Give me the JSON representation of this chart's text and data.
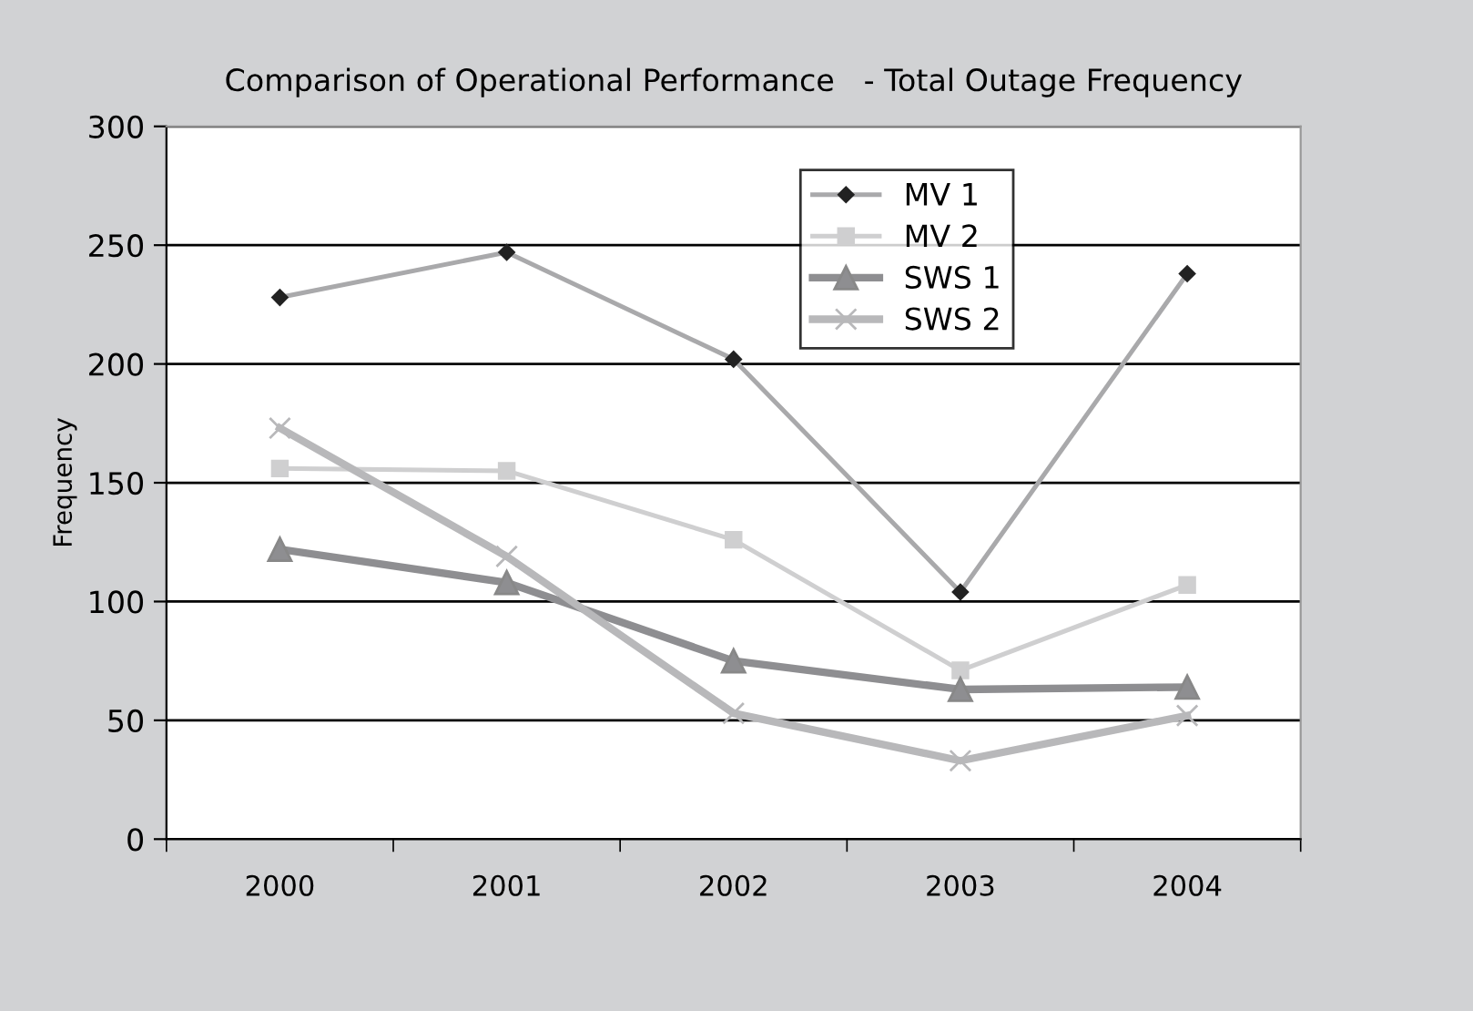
{
  "chart_data": {
    "type": "line",
    "title": "Comparison of Operational Performance   - Total Outage Frequency",
    "ylabel": "Frequency",
    "categories": [
      "2000",
      "2001",
      "2002",
      "2003",
      "2004"
    ],
    "series": [
      {
        "name": "MV 1",
        "color": "#a9a9ab",
        "marker": "diamond",
        "values": [
          228,
          247,
          202,
          104,
          238
        ]
      },
      {
        "name": "MV 2",
        "color": "#cfcfd0",
        "marker": "square",
        "values": [
          156,
          155,
          126,
          71,
          107
        ]
      },
      {
        "name": "SWS 1",
        "color": "#8e8e91",
        "marker": "triangle",
        "values": [
          122,
          108,
          75,
          63,
          64
        ]
      },
      {
        "name": "SWS 2",
        "color": "#b8b8ba",
        "marker": "cross",
        "values": [
          173,
          119,
          53,
          33,
          52
        ]
      }
    ],
    "ylim": [
      0,
      300
    ],
    "yticks": [
      0,
      50,
      100,
      150,
      200,
      250,
      300
    ],
    "grid": "y",
    "legend": "top right"
  }
}
